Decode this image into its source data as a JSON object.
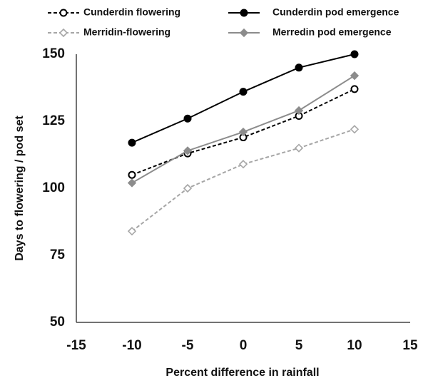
{
  "chart_data": {
    "type": "line",
    "x_label": "Percent difference in rainfall",
    "y_label": "Days to flowering / pod set",
    "x": [
      -10,
      -5,
      0,
      5,
      10
    ],
    "series": [
      {
        "name": "Cunderdin flowering",
        "color": "#000000",
        "dashed": true,
        "marker": "circle",
        "filled": false,
        "values": [
          105,
          113,
          119,
          127,
          137
        ]
      },
      {
        "name": "Cunderdin pod emergence",
        "color": "#000000",
        "dashed": false,
        "marker": "circle",
        "filled": true,
        "values": [
          117,
          126,
          136,
          145,
          150
        ]
      },
      {
        "name": "Merridin-flowering",
        "color": "#a6a6a6",
        "dashed": true,
        "marker": "diamond",
        "filled": false,
        "values": [
          84,
          100,
          109,
          115,
          122
        ]
      },
      {
        "name": "Merredin pod emergence",
        "color": "#8c8c8c",
        "dashed": false,
        "marker": "diamond",
        "filled": true,
        "values": [
          102,
          114,
          121,
          129,
          142
        ]
      }
    ],
    "xlim": [
      -15,
      15
    ],
    "xticks": [
      -15,
      -10,
      -5,
      0,
      5,
      10,
      15
    ],
    "ylim": [
      50,
      150
    ],
    "yticks": [
      50,
      75,
      100,
      125,
      150
    ],
    "grid": false,
    "legend": "top"
  }
}
